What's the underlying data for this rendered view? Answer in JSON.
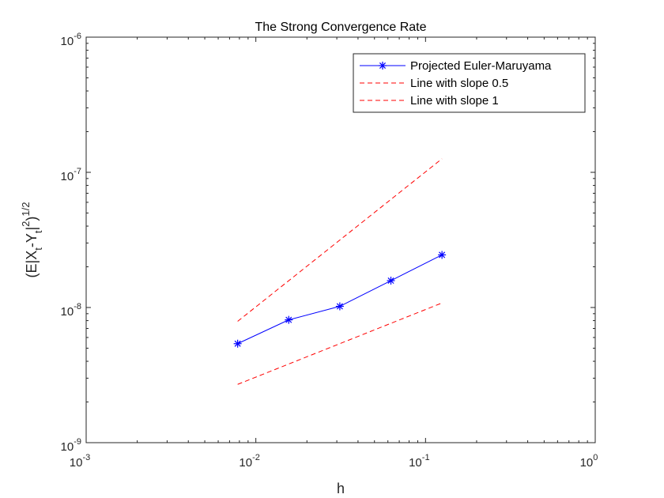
{
  "chart_data": {
    "type": "line",
    "title": "The Strong Convergence Rate",
    "xlabel": "h",
    "ylabel": "(E|X_t-Y_t|^2)^{1/2}",
    "xscale": "log",
    "yscale": "log",
    "xlim": [
      0.001,
      1
    ],
    "ylim": [
      1e-09,
      1e-06
    ],
    "x_ticks": [
      {
        "value": 0.001,
        "base": "10",
        "exp": "-3"
      },
      {
        "value": 0.01,
        "base": "10",
        "exp": "-2"
      },
      {
        "value": 0.1,
        "base": "10",
        "exp": "-1"
      },
      {
        "value": 1,
        "base": "10",
        "exp": "0"
      }
    ],
    "y_ticks": [
      {
        "value": 1e-09,
        "base": "10",
        "exp": "-9"
      },
      {
        "value": 1e-08,
        "base": "10",
        "exp": "-8"
      },
      {
        "value": 1e-07,
        "base": "10",
        "exp": "-7"
      },
      {
        "value": 1e-06,
        "base": "10",
        "exp": "-6"
      }
    ],
    "grid": false,
    "legend_position": "top-right",
    "series": [
      {
        "name": "Projected Euler-Maruyama",
        "color": "#0000ff",
        "line_style": "solid",
        "marker": "asterisk",
        "x": [
          0.0078125,
          0.015625,
          0.03125,
          0.0625,
          0.125
        ],
        "y": [
          5.4e-09,
          8.1e-09,
          1.02e-08,
          1.58e-08,
          2.45e-08
        ]
      },
      {
        "name": "Line with slope 0.5",
        "color": "#ff0000",
        "line_style": "dashed",
        "marker": "none",
        "x": [
          0.0078125,
          0.125
        ],
        "y": [
          2.7e-09,
          1.08e-08
        ]
      },
      {
        "name": "Line with slope 1",
        "color": "#ff0000",
        "line_style": "dashed",
        "marker": "none",
        "x": [
          0.0078125,
          0.125
        ],
        "y": [
          7.9e-09,
          1.26e-07
        ]
      }
    ]
  }
}
